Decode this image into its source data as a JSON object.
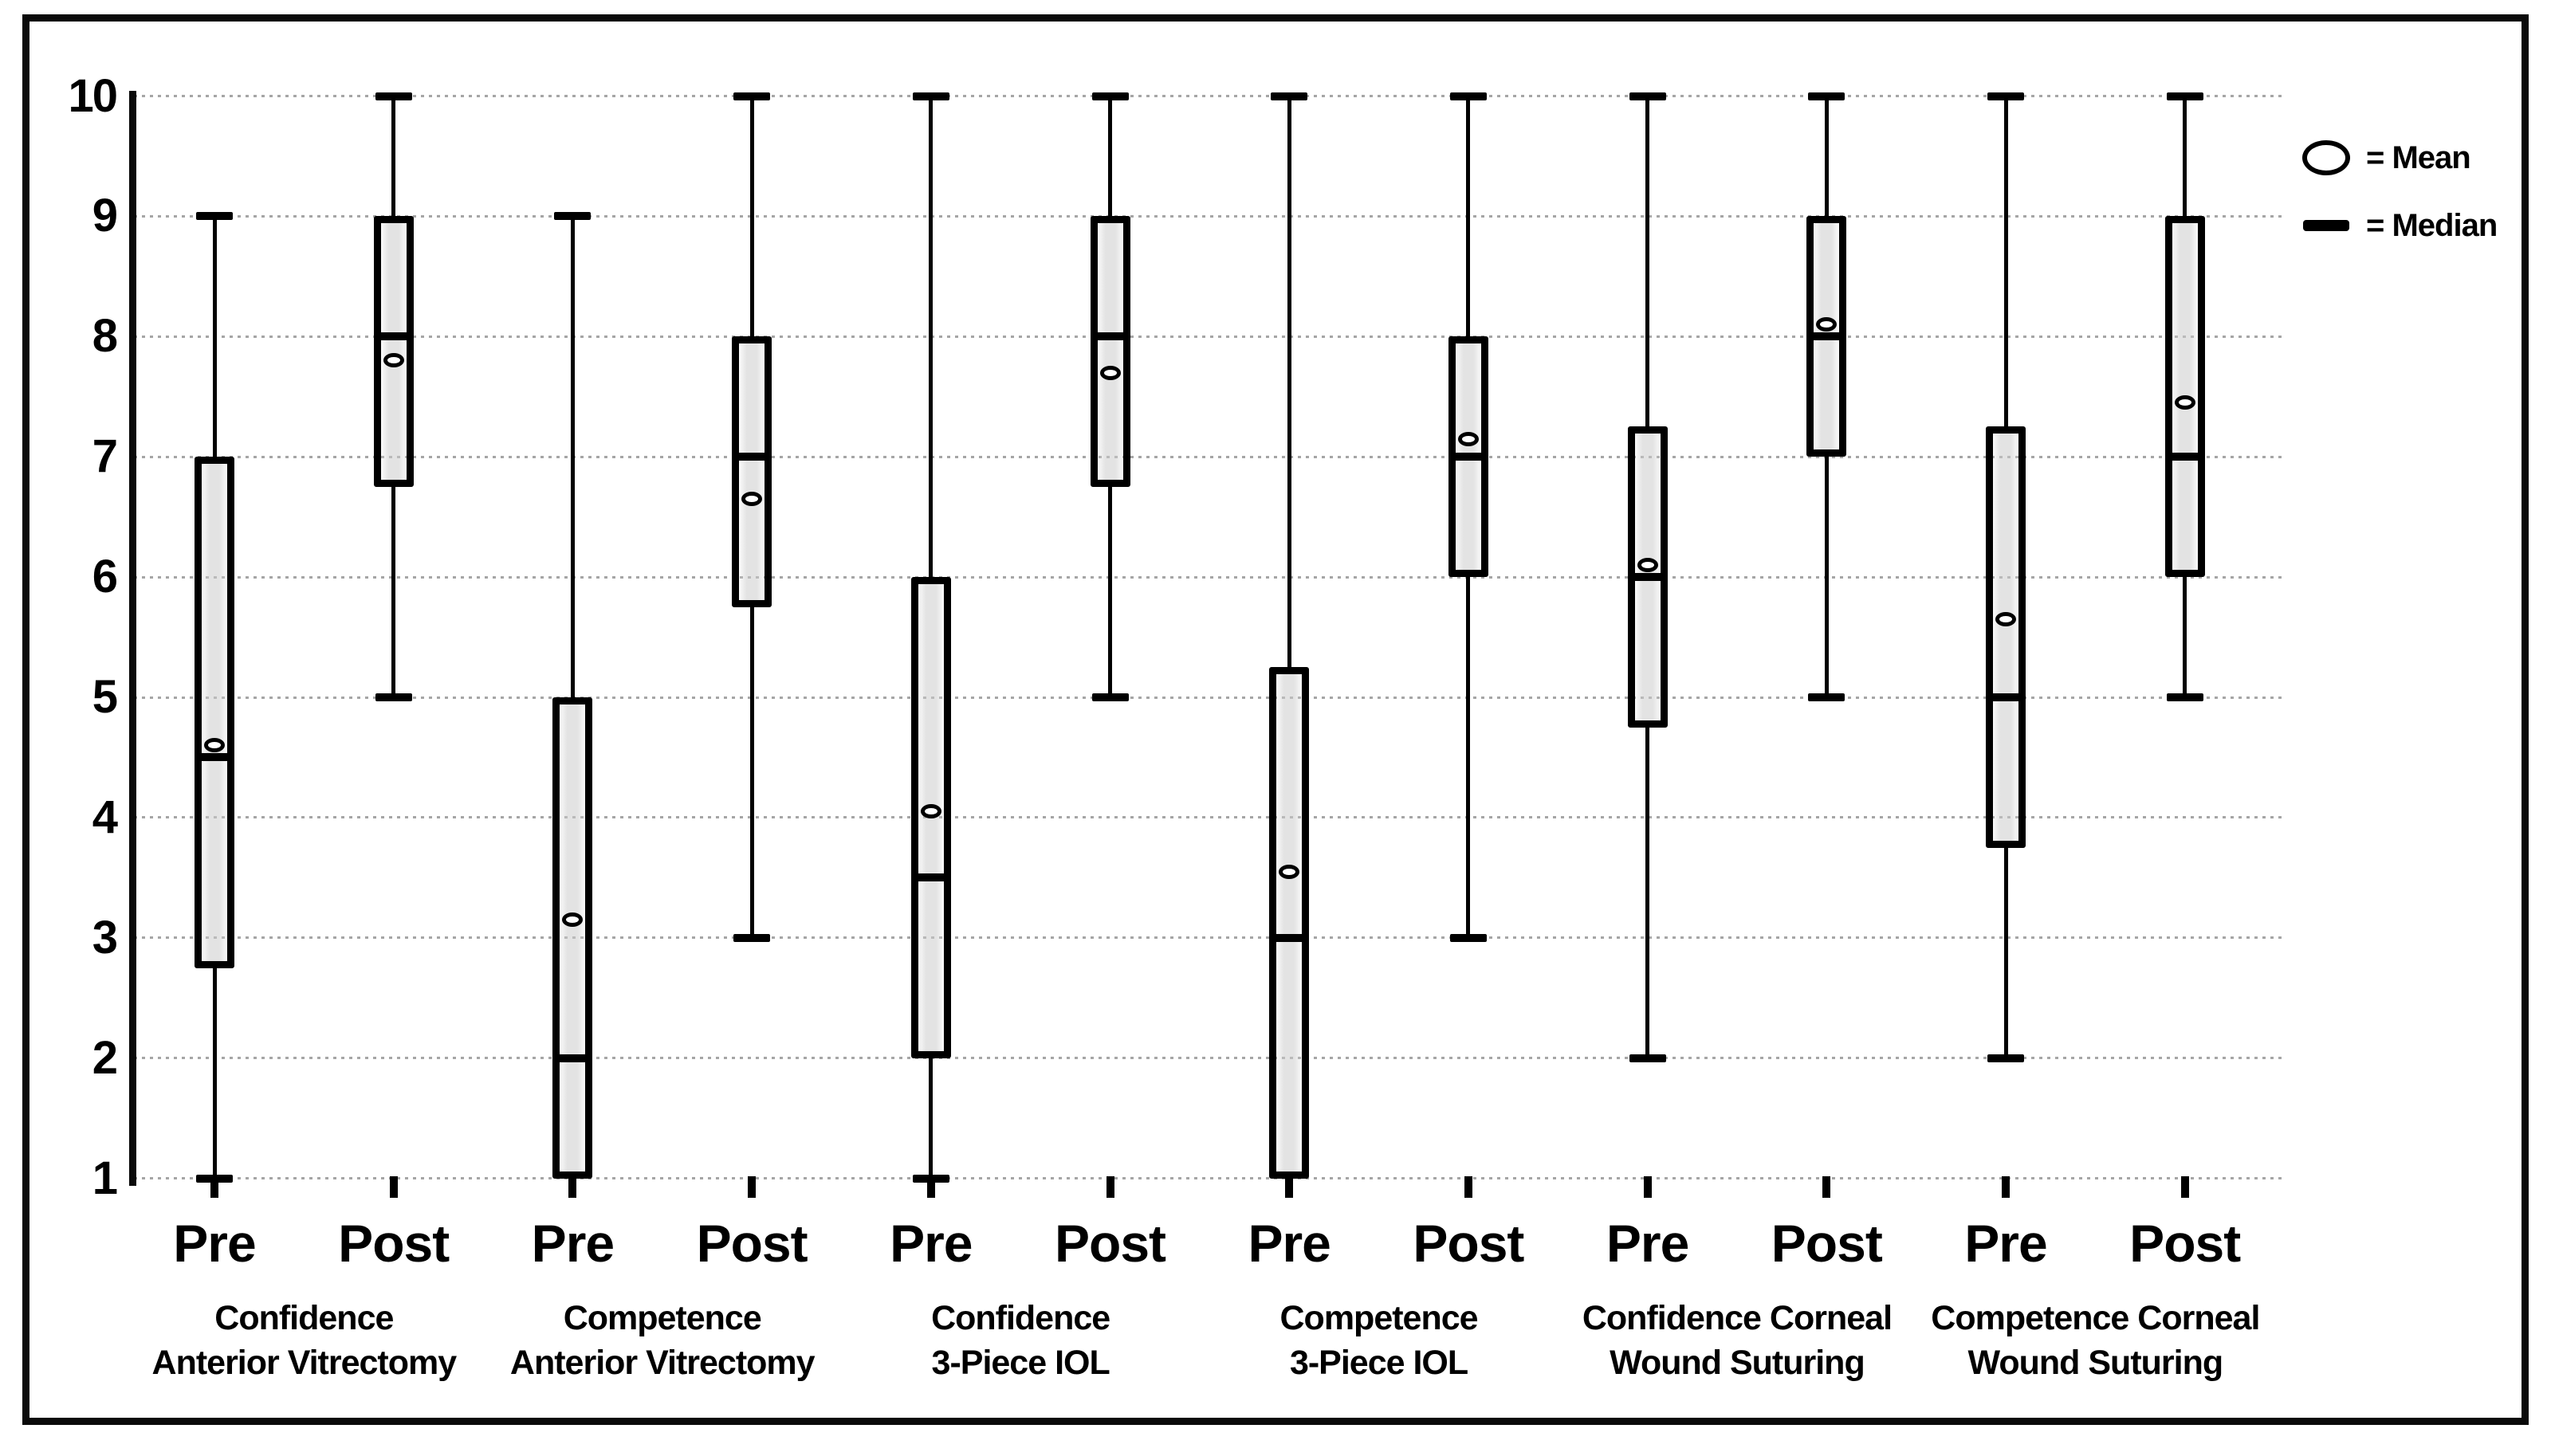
{
  "legend": {
    "mean_label": "= Mean",
    "median_label": "= Median"
  },
  "chart_data": {
    "type": "boxplot",
    "title": "",
    "y_axis": {
      "ticks": [
        10,
        9,
        8,
        7,
        6,
        5,
        4,
        3,
        2,
        1
      ],
      "min": 1,
      "max": 10,
      "grid": "dotted-horizontal"
    },
    "legend_position": "top-right",
    "colors": {
      "stroke": "#0a0a0a",
      "box_fill": "#d9d9d9",
      "grid": "#8f8f8f",
      "background": "#ffffff"
    },
    "groups": [
      {
        "label": "Confidence Anterior Vitrectomy",
        "line1": "Confidence",
        "line2": "Anterior Vitrectomy"
      },
      {
        "label": "Competence Anterior Vitrectomy",
        "line1": "Competence",
        "line2": "Anterior Vitrectomy"
      },
      {
        "label": "Confidence 3-Piece IOL",
        "line1": "Confidence",
        "line2": "3-Piece IOL"
      },
      {
        "label": "Competence 3-Piece IOL",
        "line1": "Competence",
        "line2": "3-Piece IOL"
      },
      {
        "label": "Confidence Corneal Wound Suturing",
        "line1": "Confidence Corneal",
        "line2": "Wound Suturing"
      },
      {
        "label": "Competence Corneal Wound Suturing",
        "line1": "Competence Corneal",
        "line2": "Wound Suturing"
      }
    ],
    "boxes": [
      {
        "phase": "Pre",
        "group": 0,
        "whisker_min": 1,
        "q1": 2.75,
        "median": 4.5,
        "q3": 7,
        "whisker_max": 9,
        "mean": 4.6,
        "min_cap": true
      },
      {
        "phase": "Post",
        "group": 0,
        "whisker_min": 5,
        "q1": 6.75,
        "median": 8,
        "q3": 9,
        "whisker_max": 10,
        "mean": 7.8,
        "min_cap": true
      },
      {
        "phase": "Pre",
        "group": 1,
        "whisker_min": 1,
        "q1": 1,
        "median": 2,
        "q3": 5,
        "whisker_max": 9,
        "mean": 3.15,
        "min_cap": false
      },
      {
        "phase": "Post",
        "group": 1,
        "whisker_min": 3,
        "q1": 5.75,
        "median": 7,
        "q3": 8,
        "whisker_max": 10,
        "mean": 6.65,
        "min_cap": true
      },
      {
        "phase": "Pre",
        "group": 2,
        "whisker_min": 1,
        "q1": 2,
        "median": 3.5,
        "q3": 6,
        "whisker_max": 10,
        "mean": 4.05,
        "min_cap": true
      },
      {
        "phase": "Post",
        "group": 2,
        "whisker_min": 5,
        "q1": 6.75,
        "median": 8,
        "q3": 9,
        "whisker_max": 10,
        "mean": 7.7,
        "min_cap": true
      },
      {
        "phase": "Pre",
        "group": 3,
        "whisker_min": 1,
        "q1": 1,
        "median": 3,
        "q3": 5.25,
        "whisker_max": 10,
        "mean": 3.55,
        "min_cap": false
      },
      {
        "phase": "Post",
        "group": 3,
        "whisker_min": 3,
        "q1": 6,
        "median": 7,
        "q3": 8,
        "whisker_max": 10,
        "mean": 7.15,
        "min_cap": true
      },
      {
        "phase": "Pre",
        "group": 4,
        "whisker_min": 2,
        "q1": 4.75,
        "median": 6,
        "q3": 7.25,
        "whisker_max": 10,
        "mean": 6.1,
        "min_cap": true
      },
      {
        "phase": "Post",
        "group": 4,
        "whisker_min": 5,
        "q1": 7,
        "median": 8,
        "q3": 9,
        "whisker_max": 10,
        "mean": 8.1,
        "min_cap": true
      },
      {
        "phase": "Pre",
        "group": 5,
        "whisker_min": 2,
        "q1": 3.75,
        "median": 5,
        "q3": 7.25,
        "whisker_max": 10,
        "mean": 5.65,
        "min_cap": true
      },
      {
        "phase": "Post",
        "group": 5,
        "whisker_min": 5,
        "q1": 6,
        "median": 7,
        "q3": 9,
        "whisker_max": 10,
        "mean": 7.45,
        "min_cap": true
      }
    ]
  }
}
